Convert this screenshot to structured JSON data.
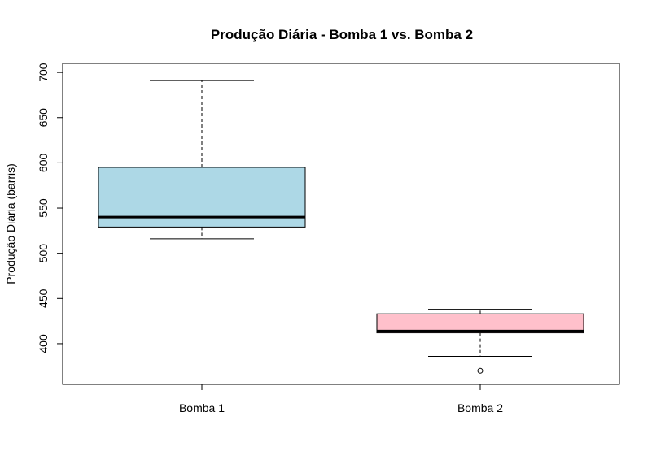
{
  "chart_data": {
    "type": "boxplot",
    "title": "Produção Diária - Bomba 1 vs. Bomba 2",
    "xlabel": "",
    "ylabel": "Produção Diária (barris)",
    "ylim": [
      355,
      710
    ],
    "yticks": [
      400,
      450,
      500,
      550,
      600,
      650,
      700
    ],
    "grid": false,
    "categories": [
      "Bomba 1",
      "Bomba 2"
    ],
    "boxes": [
      {
        "category": "Bomba 1",
        "whisker_low": 516,
        "q1": 529,
        "median": 540,
        "q3": 595,
        "whisker_high": 691,
        "outliers": [],
        "fill": "#ADD8E6"
      },
      {
        "category": "Bomba 2",
        "whisker_low": 386,
        "q1": 412,
        "median": 414,
        "q3": 433,
        "whisker_high": 438,
        "outliers": [
          370
        ],
        "fill": "#FFC0CB"
      }
    ]
  }
}
